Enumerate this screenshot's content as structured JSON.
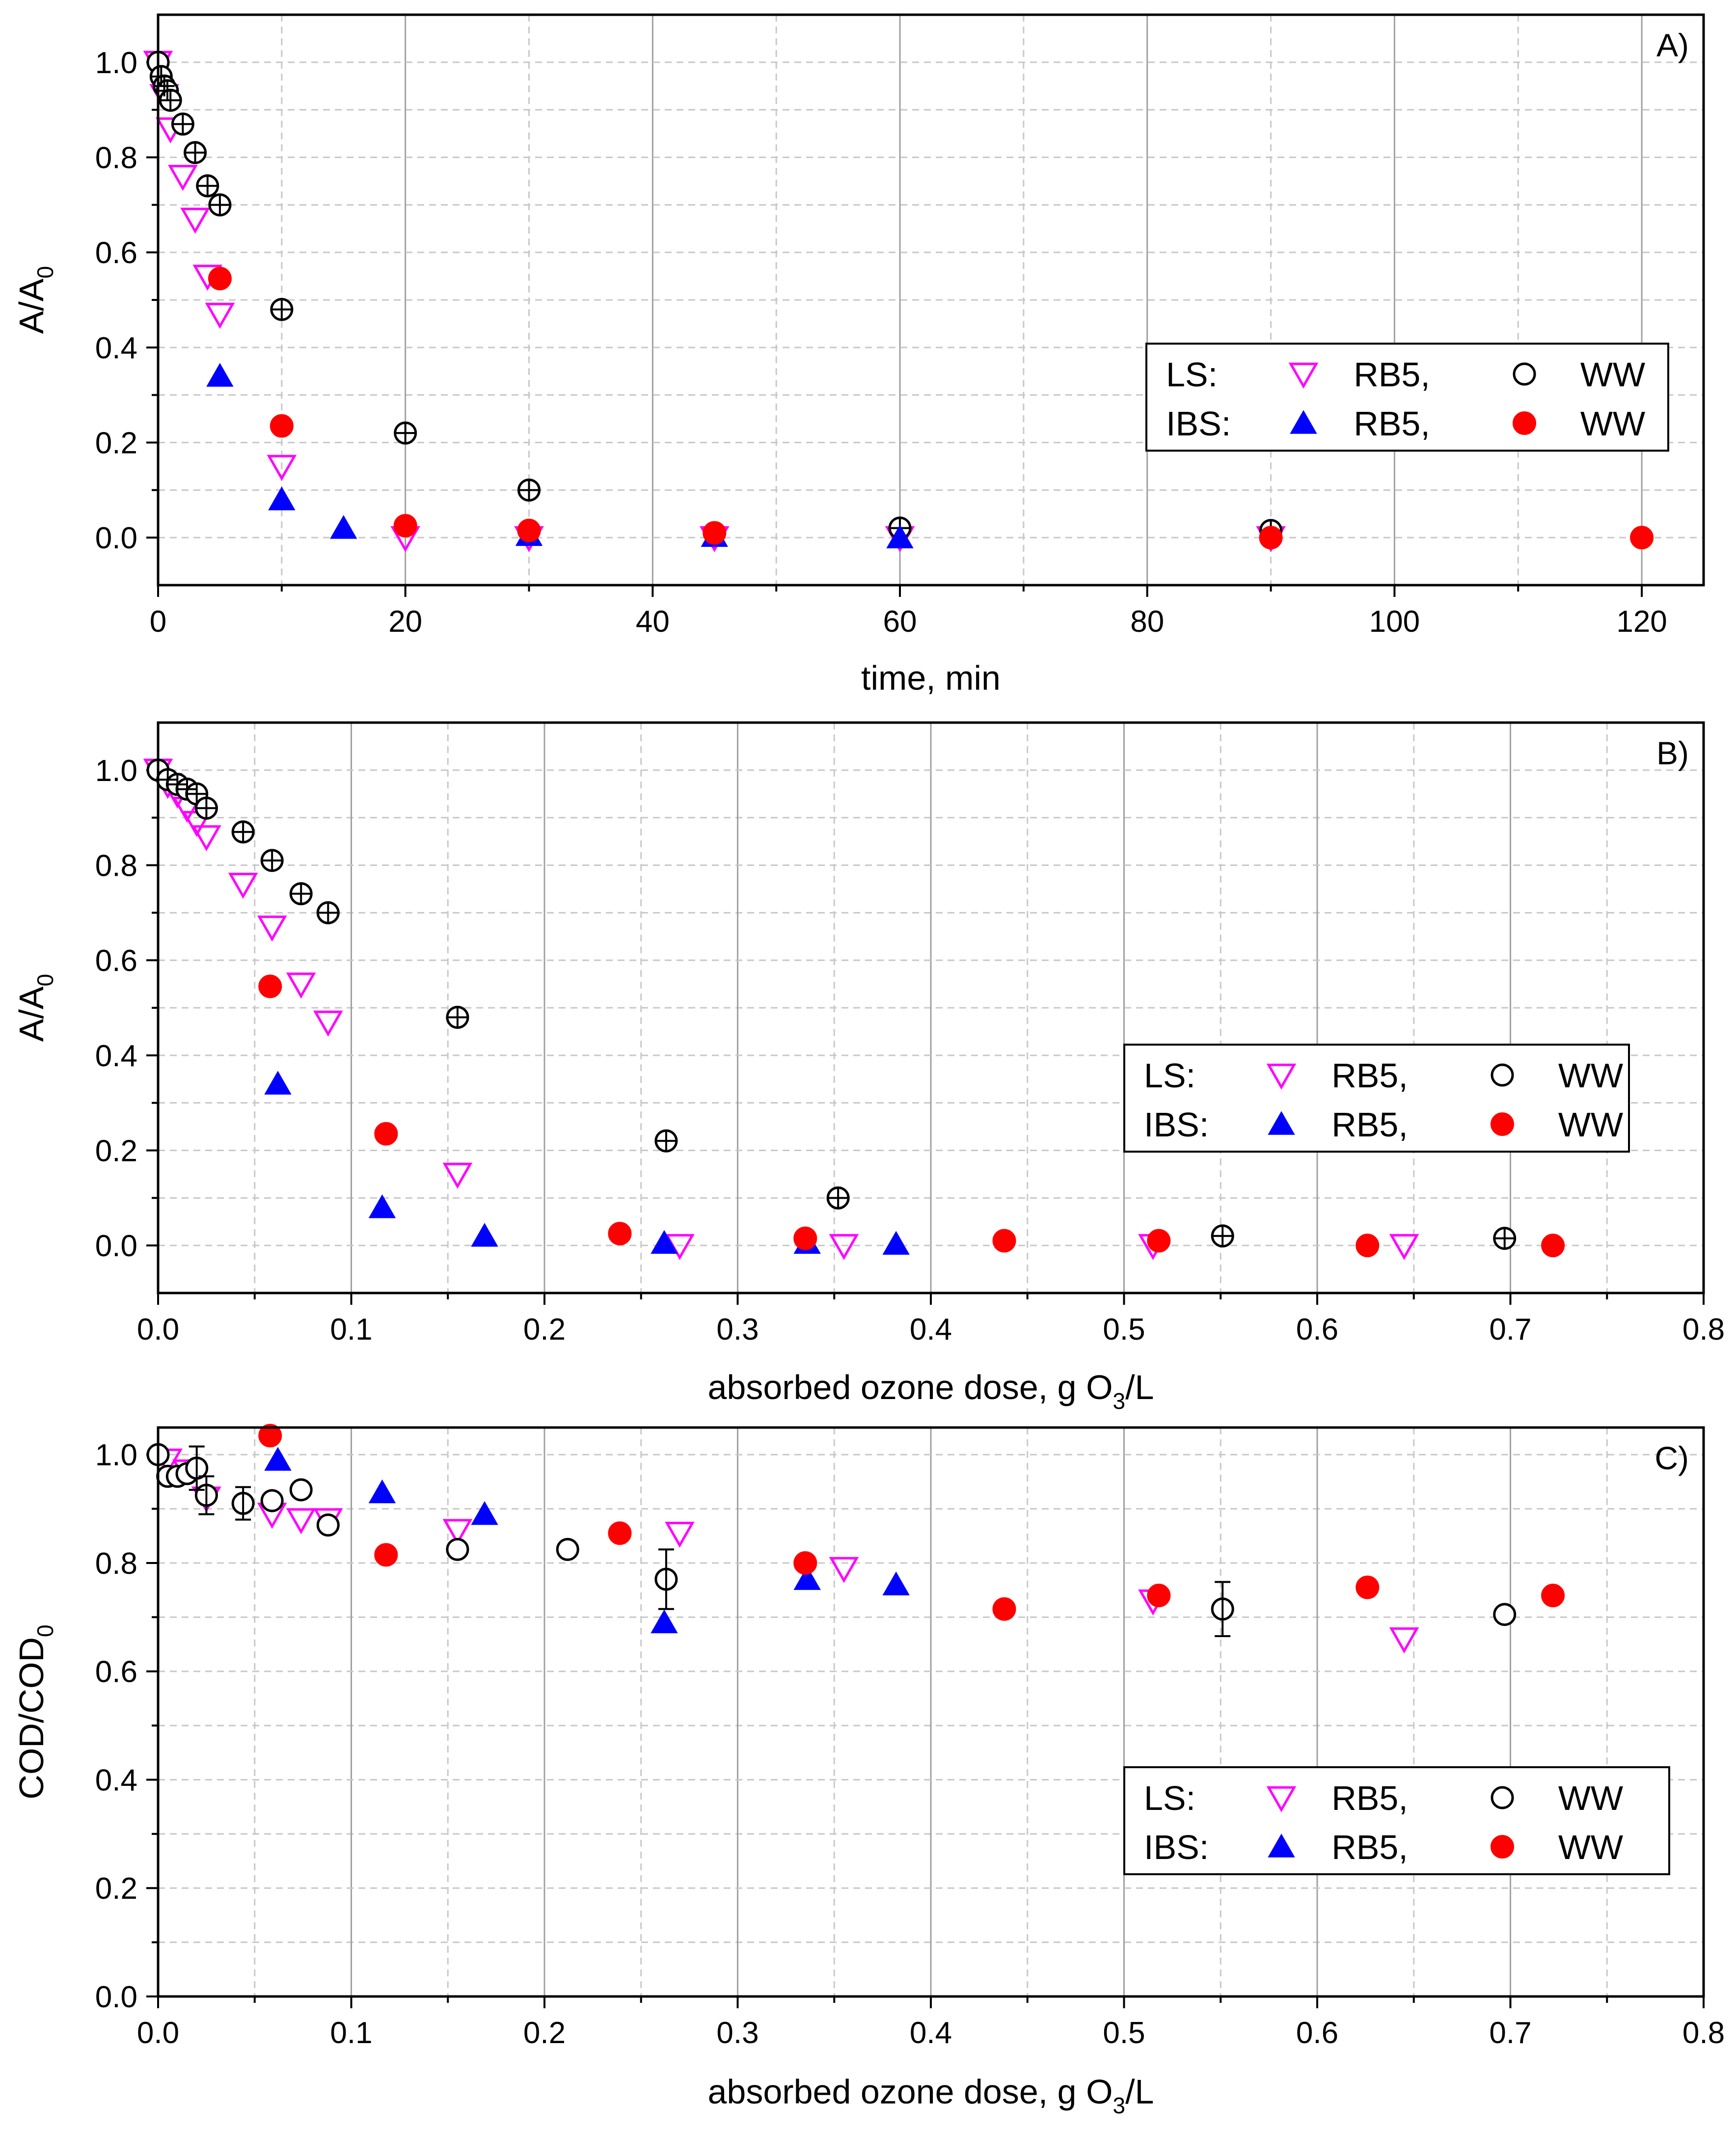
{
  "colors": {
    "ls_rb5": "#ff00ff",
    "ls_ww": "#000000",
    "ibs_rb5": "#0000ff",
    "ibs_ww": "#ff0000",
    "grid_solid": "#a0a0a0",
    "grid_dash": "#c8c8c8"
  },
  "chart_data": [
    {
      "type": "scatter",
      "panel_label": "A)",
      "xlabel": "time, min",
      "ylabel": {
        "main": "A/A",
        "sub": "0"
      },
      "xlim": [
        0,
        125
      ],
      "ylim": [
        -0.1,
        1.1
      ],
      "xticks": [
        0,
        20,
        40,
        60,
        80,
        100,
        120
      ],
      "xtick_labels": [
        "0",
        "20",
        "40",
        "60",
        "80",
        "100",
        "120"
      ],
      "xminor": [
        10,
        30,
        50,
        70,
        90,
        110
      ],
      "yticks": [
        0.0,
        0.2,
        0.4,
        0.6,
        0.8,
        1.0
      ],
      "ytick_labels": [
        "0.0",
        "0.2",
        "0.4",
        "0.6",
        "0.8",
        "1.0"
      ],
      "yminor": [
        -0.1,
        0.1,
        0.3,
        0.5,
        0.7,
        0.9
      ],
      "legend": {
        "position": "center-right",
        "rows": [
          {
            "label": "LS:",
            "entries": [
              {
                "series": "LS RB5",
                "text": "RB5,"
              },
              {
                "series": "LS WW",
                "text": "WW"
              }
            ]
          },
          {
            "label": "IBS:",
            "entries": [
              {
                "series": "IBS RB5",
                "text": "RB5,"
              },
              {
                "series": "IBS WW",
                "text": "WW"
              }
            ]
          }
        ]
      },
      "series": [
        {
          "name": "LS RB5",
          "marker": "triangle-down-open",
          "color": "#ff00ff",
          "points": [
            [
              0,
              1.0
            ],
            [
              0.5,
              0.93
            ],
            [
              1,
              0.86
            ],
            [
              2,
              0.76
            ],
            [
              3,
              0.67
            ],
            [
              4,
              0.55
            ],
            [
              5,
              0.47
            ],
            [
              10,
              0.15
            ],
            [
              20,
              0.0
            ],
            [
              30,
              0.0
            ],
            [
              45,
              0.0
            ],
            [
              60,
              0.0
            ],
            [
              90,
              0.0
            ]
          ]
        },
        {
          "name": "LS WW",
          "marker": "circle-open",
          "color": "#000000",
          "points": [
            [
              0,
              1.0
            ],
            [
              0.25,
              0.97
            ],
            [
              0.5,
              0.95
            ],
            [
              0.75,
              0.94
            ],
            [
              1,
              0.92
            ],
            [
              2,
              0.87
            ],
            [
              3,
              0.81
            ],
            [
              4,
              0.74
            ],
            [
              5,
              0.7
            ],
            [
              10,
              0.48
            ],
            [
              20,
              0.22
            ],
            [
              30,
              0.1
            ],
            [
              60,
              0.02
            ],
            [
              90,
              0.015
            ]
          ]
        },
        {
          "name": "IBS RB5",
          "marker": "triangle-up-filled",
          "color": "#0000ff",
          "points": [
            [
              5,
              0.34
            ],
            [
              10,
              0.08
            ],
            [
              15,
              0.02
            ],
            [
              30,
              0.005
            ],
            [
              45,
              0.003
            ],
            [
              60,
              0.0
            ]
          ]
        },
        {
          "name": "IBS WW",
          "marker": "circle-filled",
          "color": "#ff0000",
          "points": [
            [
              5,
              0.545
            ],
            [
              10,
              0.235
            ],
            [
              20,
              0.025
            ],
            [
              30,
              0.015
            ],
            [
              45,
              0.01
            ],
            [
              90,
              0.0
            ],
            [
              120,
              0.0
            ]
          ]
        }
      ]
    },
    {
      "type": "scatter",
      "panel_label": "B)",
      "xlabel": {
        "pre": "absorbed ozone dose, g O",
        "sub": "3",
        "post": "/L"
      },
      "ylabel": {
        "main": "A/A",
        "sub": "0"
      },
      "xlim": [
        0,
        0.8
      ],
      "ylim": [
        -0.1,
        1.1
      ],
      "xticks": [
        0.0,
        0.1,
        0.2,
        0.3,
        0.4,
        0.5,
        0.6,
        0.7,
        0.8
      ],
      "xtick_labels": [
        "0.0",
        "0.1",
        "0.2",
        "0.3",
        "0.4",
        "0.5",
        "0.6",
        "0.7",
        "0.8"
      ],
      "xminor": [
        0.05,
        0.15,
        0.25,
        0.35,
        0.45,
        0.55,
        0.65,
        0.75
      ],
      "yticks": [
        0.0,
        0.2,
        0.4,
        0.6,
        0.8,
        1.0
      ],
      "ytick_labels": [
        "0.0",
        "0.2",
        "0.4",
        "0.6",
        "0.8",
        "1.0"
      ],
      "yminor": [
        -0.1,
        0.1,
        0.3,
        0.5,
        0.7,
        0.9
      ],
      "legend": {
        "position": "center-right",
        "rows": [
          {
            "label": "LS:",
            "entries": [
              {
                "series": "LS RB5",
                "text": "RB5,"
              },
              {
                "series": "LS WW",
                "text": "WW"
              }
            ]
          },
          {
            "label": "IBS:",
            "entries": [
              {
                "series": "IBS RB5",
                "text": "RB5,"
              },
              {
                "series": "IBS WW",
                "text": "WW"
              }
            ]
          }
        ]
      },
      "series": [
        {
          "name": "LS RB5",
          "marker": "triangle-down-open",
          "color": "#ff00ff",
          "points": [
            [
              0,
              1.0
            ],
            [
              0.005,
              0.97
            ],
            [
              0.01,
              0.95
            ],
            [
              0.015,
              0.92
            ],
            [
              0.02,
              0.89
            ],
            [
              0.025,
              0.86
            ],
            [
              0.044,
              0.76
            ],
            [
              0.059,
              0.67
            ],
            [
              0.074,
              0.55
            ],
            [
              0.088,
              0.47
            ],
            [
              0.155,
              0.15
            ],
            [
              0.27,
              0.0
            ],
            [
              0.355,
              0.0
            ],
            [
              0.515,
              0.0
            ],
            [
              0.645,
              0.0
            ]
          ]
        },
        {
          "name": "LS WW",
          "marker": "circle-open",
          "color": "#000000",
          "points": [
            [
              0,
              1.0
            ],
            [
              0.005,
              0.98
            ],
            [
              0.01,
              0.97
            ],
            [
              0.015,
              0.96
            ],
            [
              0.02,
              0.95
            ],
            [
              0.025,
              0.92
            ],
            [
              0.044,
              0.87
            ],
            [
              0.059,
              0.81
            ],
            [
              0.074,
              0.74
            ],
            [
              0.088,
              0.7
            ],
            [
              0.155,
              0.48
            ],
            [
              0.263,
              0.22
            ],
            [
              0.352,
              0.1
            ],
            [
              0.551,
              0.02
            ],
            [
              0.697,
              0.015
            ]
          ]
        },
        {
          "name": "IBS RB5",
          "marker": "triangle-up-filled",
          "color": "#0000ff",
          "points": [
            [
              0.062,
              0.34
            ],
            [
              0.116,
              0.08
            ],
            [
              0.169,
              0.02
            ],
            [
              0.262,
              0.005
            ],
            [
              0.336,
              0.005
            ],
            [
              0.382,
              0.003
            ]
          ]
        },
        {
          "name": "IBS WW",
          "marker": "circle-filled",
          "color": "#ff0000",
          "points": [
            [
              0.058,
              0.545
            ],
            [
              0.118,
              0.235
            ],
            [
              0.239,
              0.025
            ],
            [
              0.335,
              0.015
            ],
            [
              0.438,
              0.01
            ],
            [
              0.518,
              0.01
            ],
            [
              0.626,
              0.0
            ],
            [
              0.722,
              0.0
            ]
          ]
        }
      ]
    },
    {
      "type": "scatter",
      "panel_label": "C)",
      "xlabel": {
        "pre": "absorbed ozone dose, g O",
        "sub": "3",
        "post": "/L"
      },
      "ylabel": {
        "main": "COD/COD",
        "sub": "0"
      },
      "xlim": [
        0,
        0.8
      ],
      "ylim": [
        0,
        1.05
      ],
      "xticks": [
        0.0,
        0.1,
        0.2,
        0.3,
        0.4,
        0.5,
        0.6,
        0.7,
        0.8
      ],
      "xtick_labels": [
        "0.0",
        "0.1",
        "0.2",
        "0.3",
        "0.4",
        "0.5",
        "0.6",
        "0.7",
        "0.8"
      ],
      "xminor": [
        0.05,
        0.15,
        0.25,
        0.35,
        0.45,
        0.55,
        0.65,
        0.75
      ],
      "yticks": [
        0.0,
        0.2,
        0.4,
        0.6,
        0.8,
        1.0
      ],
      "ytick_labels": [
        "0.0",
        "0.2",
        "0.4",
        "0.6",
        "0.8",
        "1.0"
      ],
      "yminor": [
        0.1,
        0.3,
        0.5,
        0.7,
        0.9
      ],
      "legend": {
        "position": "bottom-right",
        "rows": [
          {
            "label": "LS:",
            "entries": [
              {
                "series": "LS RB5",
                "text": "RB5,"
              },
              {
                "series": "LS WW",
                "text": "WW"
              }
            ]
          },
          {
            "label": "IBS:",
            "entries": [
              {
                "series": "IBS RB5",
                "text": "RB5,"
              },
              {
                "series": "IBS WW",
                "text": "WW"
              }
            ]
          }
        ]
      },
      "series": [
        {
          "name": "LS RB5",
          "marker": "triangle-down-open",
          "color": "#ff00ff",
          "points": [
            [
              0.005,
              0.99
            ],
            [
              0.015,
              0.97
            ],
            [
              0.025,
              0.92
            ],
            [
              0.059,
              0.89
            ],
            [
              0.074,
              0.88
            ],
            [
              0.088,
              0.88
            ],
            [
              0.155,
              0.86
            ],
            [
              0.27,
              0.855
            ],
            [
              0.355,
              0.79
            ],
            [
              0.515,
              0.73
            ],
            [
              0.645,
              0.66
            ]
          ]
        },
        {
          "name": "LS WW",
          "marker": "circle-open",
          "color": "#000000",
          "points": [
            [
              0,
              1.0
            ],
            [
              0.005,
              0.96
            ],
            [
              0.01,
              0.96
            ],
            [
              0.015,
              0.965
            ],
            [
              0.02,
              0.975
            ],
            [
              0.025,
              0.925
            ],
            [
              0.044,
              0.91
            ],
            [
              0.059,
              0.915
            ],
            [
              0.074,
              0.935
            ],
            [
              0.088,
              0.87
            ],
            [
              0.155,
              0.825
            ],
            [
              0.212,
              0.825
            ],
            [
              0.263,
              0.77
            ],
            [
              0.551,
              0.715
            ],
            [
              0.697,
              0.705
            ]
          ],
          "error_bars": [
            [
              0.02,
              0.975,
              0.04
            ],
            [
              0.025,
              0.925,
              0.035
            ],
            [
              0.044,
              0.91,
              0.03
            ],
            [
              0.263,
              0.77,
              0.055
            ],
            [
              0.551,
              0.715,
              0.05
            ]
          ]
        },
        {
          "name": "IBS RB5",
          "marker": "triangle-up-filled",
          "color": "#0000ff",
          "points": [
            [
              0.062,
              0.99
            ],
            [
              0.116,
              0.93
            ],
            [
              0.169,
              0.89
            ],
            [
              0.262,
              0.69
            ],
            [
              0.336,
              0.77
            ],
            [
              0.382,
              0.76
            ]
          ]
        },
        {
          "name": "IBS WW",
          "marker": "circle-filled",
          "color": "#ff0000",
          "points": [
            [
              0.058,
              1.035
            ],
            [
              0.118,
              0.815
            ],
            [
              0.239,
              0.855
            ],
            [
              0.335,
              0.8
            ],
            [
              0.438,
              0.715
            ],
            [
              0.518,
              0.74
            ],
            [
              0.626,
              0.755
            ],
            [
              0.722,
              0.74
            ]
          ]
        }
      ]
    }
  ]
}
